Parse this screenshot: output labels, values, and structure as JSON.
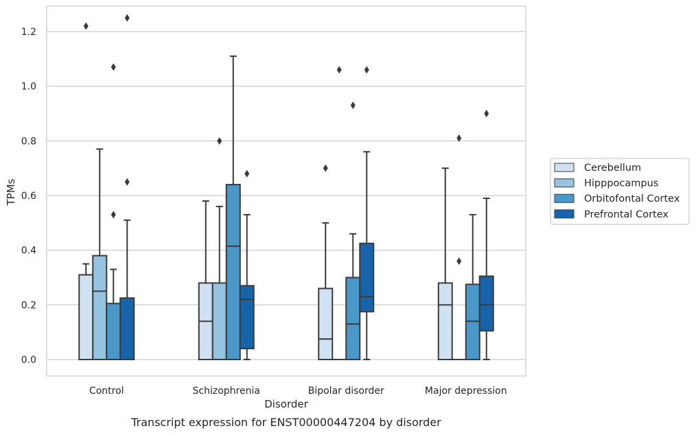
{
  "chart_data": {
    "type": "box",
    "xlabel": "Disorder",
    "ylabel": "TPMs",
    "caption": "Transcript expression for ENST00000447204 by disorder",
    "categories": [
      "Control",
      "Schizophrenia",
      "Bipolar disorder",
      "Major depression"
    ],
    "ylim": [
      -0.06,
      1.31
    ],
    "yticks": [
      "0.0",
      "0.2",
      "0.4",
      "0.6",
      "0.8",
      "1.0",
      "1.2"
    ],
    "grid": "horizontal",
    "legend_position": "right",
    "series": [
      {
        "name": "Cerebellum",
        "color": "#d0e1f2",
        "boxes": [
          {
            "whisker_low": 0.0,
            "q1": 0.0,
            "median": 0.0,
            "q3": 0.31,
            "whisker_high": 0.35,
            "outliers": [
              1.22
            ]
          },
          {
            "whisker_low": 0.0,
            "q1": 0.0,
            "median": 0.14,
            "q3": 0.28,
            "whisker_high": 0.58,
            "outliers": []
          },
          {
            "whisker_low": 0.0,
            "q1": 0.0,
            "median": 0.075,
            "q3": 0.26,
            "whisker_high": 0.5,
            "outliers": [
              0.7
            ]
          },
          {
            "whisker_low": 0.0,
            "q1": 0.0,
            "median": 0.2,
            "q3": 0.28,
            "whisker_high": 0.7,
            "outliers": []
          }
        ]
      },
      {
        "name": "Hipppocampus",
        "color": "#94c4df",
        "boxes": [
          {
            "whisker_low": 0.0,
            "q1": 0.0,
            "median": 0.25,
            "q3": 0.38,
            "whisker_high": 0.77,
            "outliers": []
          },
          {
            "whisker_low": 0.0,
            "q1": 0.0,
            "median": 0.0,
            "q3": 0.28,
            "whisker_high": 0.56,
            "outliers": [
              0.8
            ]
          },
          {
            "whisker_low": 0.0,
            "q1": 0.0,
            "median": 0.0,
            "q3": 0.0,
            "whisker_high": 0.0,
            "outliers": [
              1.06
            ]
          },
          {
            "whisker_low": 0.0,
            "q1": 0.0,
            "median": 0.0,
            "q3": 0.0,
            "whisker_high": 0.0,
            "outliers": [
              0.36,
              0.81
            ]
          }
        ]
      },
      {
        "name": "Orbitofontal Cortex",
        "color": "#4a98c9",
        "boxes": [
          {
            "whisker_low": 0.0,
            "q1": 0.0,
            "median": 0.0,
            "q3": 0.205,
            "whisker_high": 0.33,
            "outliers": [
              0.53,
              1.07
            ]
          },
          {
            "whisker_low": 0.0,
            "q1": 0.0,
            "median": 0.415,
            "q3": 0.64,
            "whisker_high": 1.11,
            "outliers": []
          },
          {
            "whisker_low": 0.0,
            "q1": 0.0,
            "median": 0.13,
            "q3": 0.3,
            "whisker_high": 0.46,
            "outliers": [
              0.93
            ]
          },
          {
            "whisker_low": 0.0,
            "q1": 0.0,
            "median": 0.14,
            "q3": 0.275,
            "whisker_high": 0.53,
            "outliers": []
          }
        ]
      },
      {
        "name": "Prefrontal Cortex",
        "color": "#1764ab",
        "boxes": [
          {
            "whisker_low": 0.0,
            "q1": 0.0,
            "median": 0.0,
            "q3": 0.225,
            "whisker_high": 0.51,
            "outliers": [
              0.65,
              1.25
            ]
          },
          {
            "whisker_low": 0.0,
            "q1": 0.04,
            "median": 0.22,
            "q3": 0.27,
            "whisker_high": 0.53,
            "outliers": [
              0.68
            ]
          },
          {
            "whisker_low": 0.0,
            "q1": 0.175,
            "median": 0.23,
            "q3": 0.425,
            "whisker_high": 0.76,
            "outliers": [
              1.06
            ]
          },
          {
            "whisker_low": 0.0,
            "q1": 0.105,
            "median": 0.2,
            "q3": 0.305,
            "whisker_high": 0.59,
            "outliers": [
              0.9
            ]
          }
        ]
      }
    ]
  }
}
